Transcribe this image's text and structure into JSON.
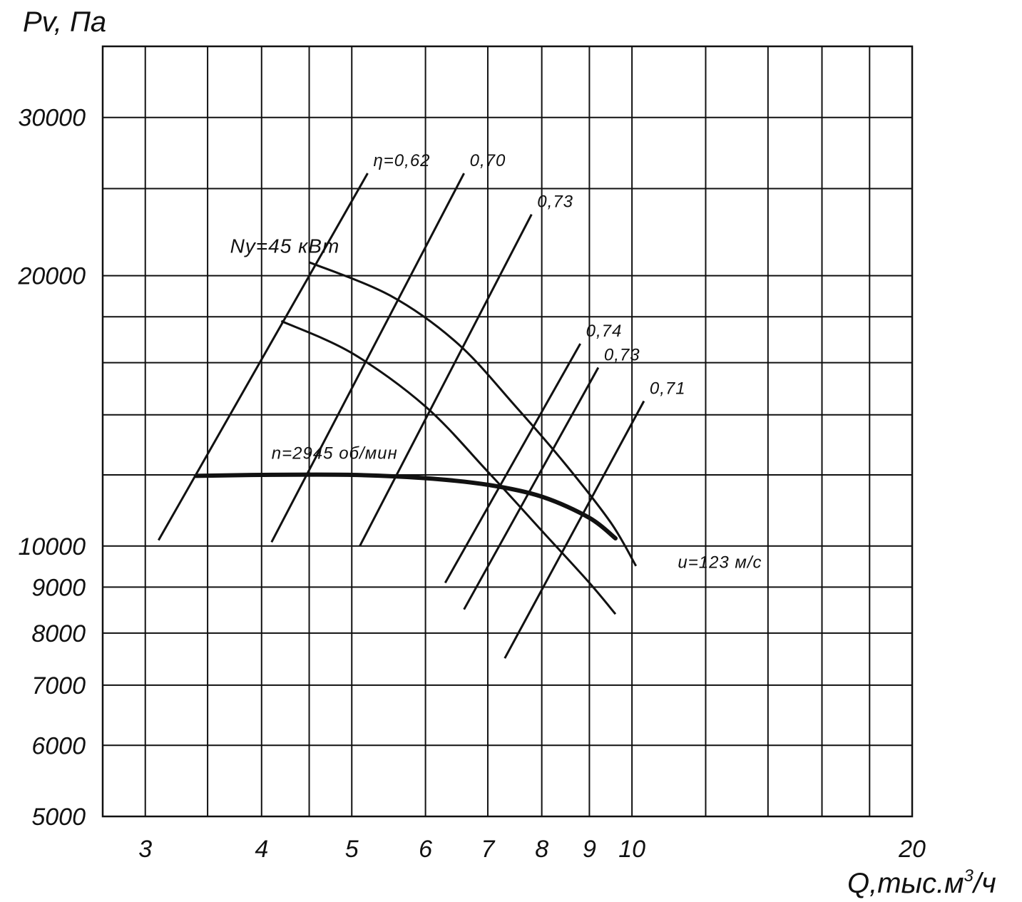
{
  "chart_data": {
    "type": "line",
    "title": "",
    "ylabel": "Pv, Па",
    "xlabel_main": "Q,тыс.м",
    "xlabel_sup": "3",
    "xlabel_tail": "/ч",
    "xscale": "log",
    "yscale": "log",
    "xlim": [
      2.7,
      20
    ],
    "ylim": [
      5000,
      36000
    ],
    "grid": true,
    "x_ticks": [
      3,
      4,
      5,
      6,
      7,
      8,
      9,
      10,
      20
    ],
    "x_tick_labels": [
      "3",
      "4",
      "5",
      "6",
      "7",
      "8",
      "9",
      "10",
      "20"
    ],
    "x_grid": [
      3,
      3.5,
      4,
      4.5,
      5,
      6,
      7,
      8,
      9,
      10,
      12,
      14,
      16,
      18,
      20
    ],
    "y_ticks": [
      5000,
      6000,
      7000,
      8000,
      9000,
      10000,
      20000,
      30000
    ],
    "y_tick_labels": [
      "5000",
      "6000",
      "7000",
      "8000",
      "9000",
      "10000",
      "20000",
      "30000"
    ],
    "y_grid": [
      5000,
      6000,
      7000,
      8000,
      9000,
      10000,
      12000,
      14000,
      16000,
      18000,
      20000,
      25000,
      30000
    ],
    "series": [
      {
        "name": "",
        "role": "pressure-curve",
        "points": [
          [
            3.4,
            11970
          ],
          [
            4.0,
            12000
          ],
          [
            5.0,
            12000
          ],
          [
            6.0,
            11900
          ],
          [
            7.0,
            11700
          ],
          [
            8.0,
            11350
          ],
          [
            9.0,
            10750
          ],
          [
            9.6,
            10200
          ]
        ]
      }
    ],
    "power_curves": [
      {
        "role": "power-upper",
        "points": [
          [
            4.5,
            20700
          ],
          [
            5.5,
            19000
          ],
          [
            6.5,
            16800
          ],
          [
            7.5,
            14300
          ],
          [
            8.5,
            12300
          ],
          [
            9.5,
            10600
          ],
          [
            10.1,
            9500
          ]
        ]
      },
      {
        "role": "power-lower",
        "points": [
          [
            4.2,
            17800
          ],
          [
            5.0,
            16400
          ],
          [
            6.0,
            14300
          ],
          [
            7.0,
            12100
          ],
          [
            8.0,
            10400
          ],
          [
            9.0,
            9100
          ],
          [
            9.6,
            8400
          ]
        ]
      }
    ],
    "efficiency_lines": [
      {
        "label": "η=0,62",
        "from": [
          3.1,
          10150
        ],
        "to": [
          5.2,
          26000
        ]
      },
      {
        "label": "0,70",
        "from": [
          4.1,
          10100
        ],
        "to": [
          6.6,
          26000
        ]
      },
      {
        "label": "0,73",
        "from": [
          5.1,
          10000
        ],
        "to": [
          7.8,
          23400
        ]
      },
      {
        "label": "0,74",
        "from": [
          6.3,
          9100
        ],
        "to": [
          8.8,
          16800
        ]
      },
      {
        "label": "0,73",
        "from": [
          6.6,
          8500
        ],
        "to": [
          9.2,
          15800
        ]
      },
      {
        "label": "0,71",
        "from": [
          7.3,
          7500
        ],
        "to": [
          10.3,
          14500
        ]
      }
    ],
    "annotations": [
      {
        "text": "Ny=45 кВт",
        "at": [
          3.7,
          21200
        ]
      },
      {
        "text": "n=2945 об/мин",
        "at": [
          4.1,
          12500
        ]
      },
      {
        "text": "u=123 м/с",
        "at": [
          11.2,
          9450
        ]
      }
    ]
  }
}
